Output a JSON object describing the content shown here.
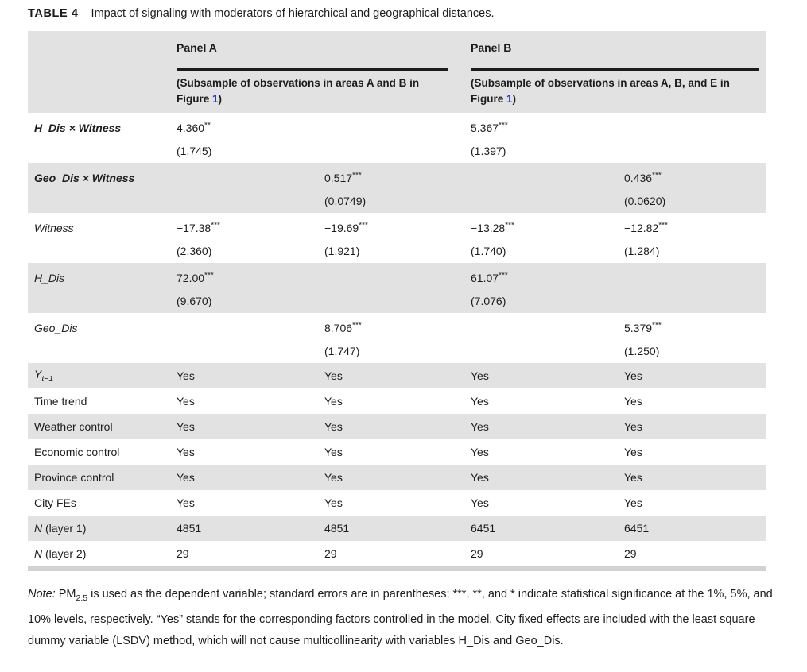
{
  "title": {
    "tag": "TABLE 4",
    "text": "Impact of signaling with moderators of hierarchical and geographical distances."
  },
  "colors": {
    "row_shade": "#e2e2e2",
    "figure_link_blue": "#2633cc",
    "panel_rule_black": "#1c1c1c",
    "bottom_rule_gray": "#d2d2d2"
  },
  "header": {
    "panel_a": {
      "label": "Panel A",
      "subtitle_pre": "(Subsample of observations in areas A and B in Figure ",
      "figure_ref": "1",
      "subtitle_post": ")"
    },
    "panel_b": {
      "label": "Panel B",
      "subtitle_pre": "(Subsample of observations in areas A, B, and E in Figure ",
      "figure_ref": "1",
      "subtitle_post": ")"
    }
  },
  "coef_rows": [
    {
      "label": "H_Dis × Witness",
      "cells": [
        {
          "coef": "4.360",
          "stars": "**",
          "se": "(1.745)"
        },
        {
          "coef": "",
          "stars": "",
          "se": ""
        },
        {
          "coef": "5.367",
          "stars": "***",
          "se": "(1.397)"
        },
        {
          "coef": "",
          "stars": "",
          "se": ""
        }
      ]
    },
    {
      "label": "Geo_Dis × Witness",
      "cells": [
        {
          "coef": "",
          "stars": "",
          "se": ""
        },
        {
          "coef": "0.517",
          "stars": "***",
          "se": "(0.0749)"
        },
        {
          "coef": "",
          "stars": "",
          "se": ""
        },
        {
          "coef": "0.436",
          "stars": "***",
          "se": "(0.0620)"
        }
      ]
    },
    {
      "label": "Witness",
      "cells": [
        {
          "coef": "−17.38",
          "stars": "***",
          "se": "(2.360)"
        },
        {
          "coef": "−19.69",
          "stars": "***",
          "se": "(1.921)"
        },
        {
          "coef": "−13.28",
          "stars": "***",
          "se": "(1.740)"
        },
        {
          "coef": "−12.82",
          "stars": "***",
          "se": "(1.284)"
        }
      ]
    },
    {
      "label": "H_Dis",
      "cells": [
        {
          "coef": "72.00",
          "stars": "***",
          "se": "(9.670)"
        },
        {
          "coef": "",
          "stars": "",
          "se": ""
        },
        {
          "coef": "61.07",
          "stars": "***",
          "se": "(7.076)"
        },
        {
          "coef": "",
          "stars": "",
          "se": ""
        }
      ]
    },
    {
      "label": "Geo_Dis",
      "cells": [
        {
          "coef": "",
          "stars": "",
          "se": ""
        },
        {
          "coef": "8.706",
          "stars": "***",
          "se": "(1.747)"
        },
        {
          "coef": "",
          "stars": "",
          "se": ""
        },
        {
          "coef": "5.379",
          "stars": "***",
          "se": "(1.250)"
        }
      ]
    }
  ],
  "simple_rows": [
    {
      "label_main": "Y",
      "label_sub": "t−1",
      "label_rest": "",
      "values": [
        "Yes",
        "Yes",
        "Yes",
        "Yes"
      ]
    },
    {
      "label_main": "Time trend",
      "label_sub": "",
      "label_rest": "",
      "values": [
        "Yes",
        "Yes",
        "Yes",
        "Yes"
      ]
    },
    {
      "label_main": "Weather control",
      "label_sub": "",
      "label_rest": "",
      "values": [
        "Yes",
        "Yes",
        "Yes",
        "Yes"
      ]
    },
    {
      "label_main": "Economic control",
      "label_sub": "",
      "label_rest": "",
      "values": [
        "Yes",
        "Yes",
        "Yes",
        "Yes"
      ]
    },
    {
      "label_main": "Province control",
      "label_sub": "",
      "label_rest": "",
      "values": [
        "Yes",
        "Yes",
        "Yes",
        "Yes"
      ]
    },
    {
      "label_main": "City FEs",
      "label_sub": "",
      "label_rest": "",
      "values": [
        "Yes",
        "Yes",
        "Yes",
        "Yes"
      ]
    },
    {
      "label_main": "N",
      "label_sub": "",
      "label_rest": " (layer 1)",
      "values": [
        "4851",
        "4851",
        "6451",
        "6451"
      ]
    },
    {
      "label_main": "N",
      "label_sub": "",
      "label_rest": " (layer 2)",
      "values": [
        "29",
        "29",
        "29",
        "29"
      ]
    }
  ],
  "note": {
    "label": "Note:",
    "pm": " PM",
    "pm_sub": "2.5",
    "body": " is used as the dependent variable; standard errors are in parentheses; ***, **, and * indicate statistical significance at the 1%, 5%, and 10% levels, respectively. “Yes” stands for the corresponding factors controlled in the model. City fixed effects are included with the least square dummy variable (LSDV) method, which will not cause multicollinearity with variables H_Dis and Geo_Dis."
  }
}
